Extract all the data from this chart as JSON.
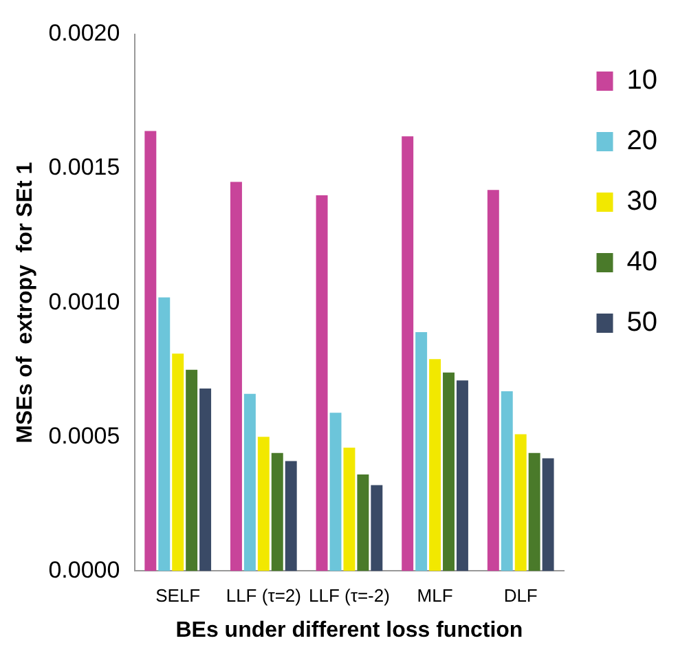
{
  "chart_data": {
    "type": "bar",
    "xlabel": "BEs under different loss function",
    "ylabel": "MSEs of  extropy  for SEt 1",
    "categories": [
      "SELF",
      "LLF (τ=2)",
      "LLF (τ=-2)",
      "MLF",
      "DLF"
    ],
    "series": [
      {
        "name": "10",
        "color": "#c8449a",
        "values": [
          0.00164,
          0.00145,
          0.0014,
          0.00162,
          0.00142
        ]
      },
      {
        "name": "20",
        "color": "#6cc5da",
        "values": [
          0.00102,
          0.00066,
          0.00059,
          0.00089,
          0.00067
        ]
      },
      {
        "name": "30",
        "color": "#f2e800",
        "values": [
          0.00081,
          0.0005,
          0.00046,
          0.00079,
          0.00051
        ]
      },
      {
        "name": "40",
        "color": "#4a7a2a",
        "values": [
          0.00075,
          0.00044,
          0.00036,
          0.00074,
          0.00044
        ]
      },
      {
        "name": "50",
        "color": "#3a4a66",
        "values": [
          0.00068,
          0.00041,
          0.00032,
          0.00071,
          0.00042
        ]
      }
    ],
    "ylim": [
      0,
      0.002
    ],
    "yticks": [
      {
        "value": 0,
        "label": "0.0000"
      },
      {
        "value": 0.0005,
        "label": "0.0005"
      },
      {
        "value": 0.001,
        "label": "0.0010"
      },
      {
        "value": 0.0015,
        "label": "0.0015"
      },
      {
        "value": 0.002,
        "label": "0.0020"
      }
    ],
    "grid": false,
    "legend": "top right"
  }
}
